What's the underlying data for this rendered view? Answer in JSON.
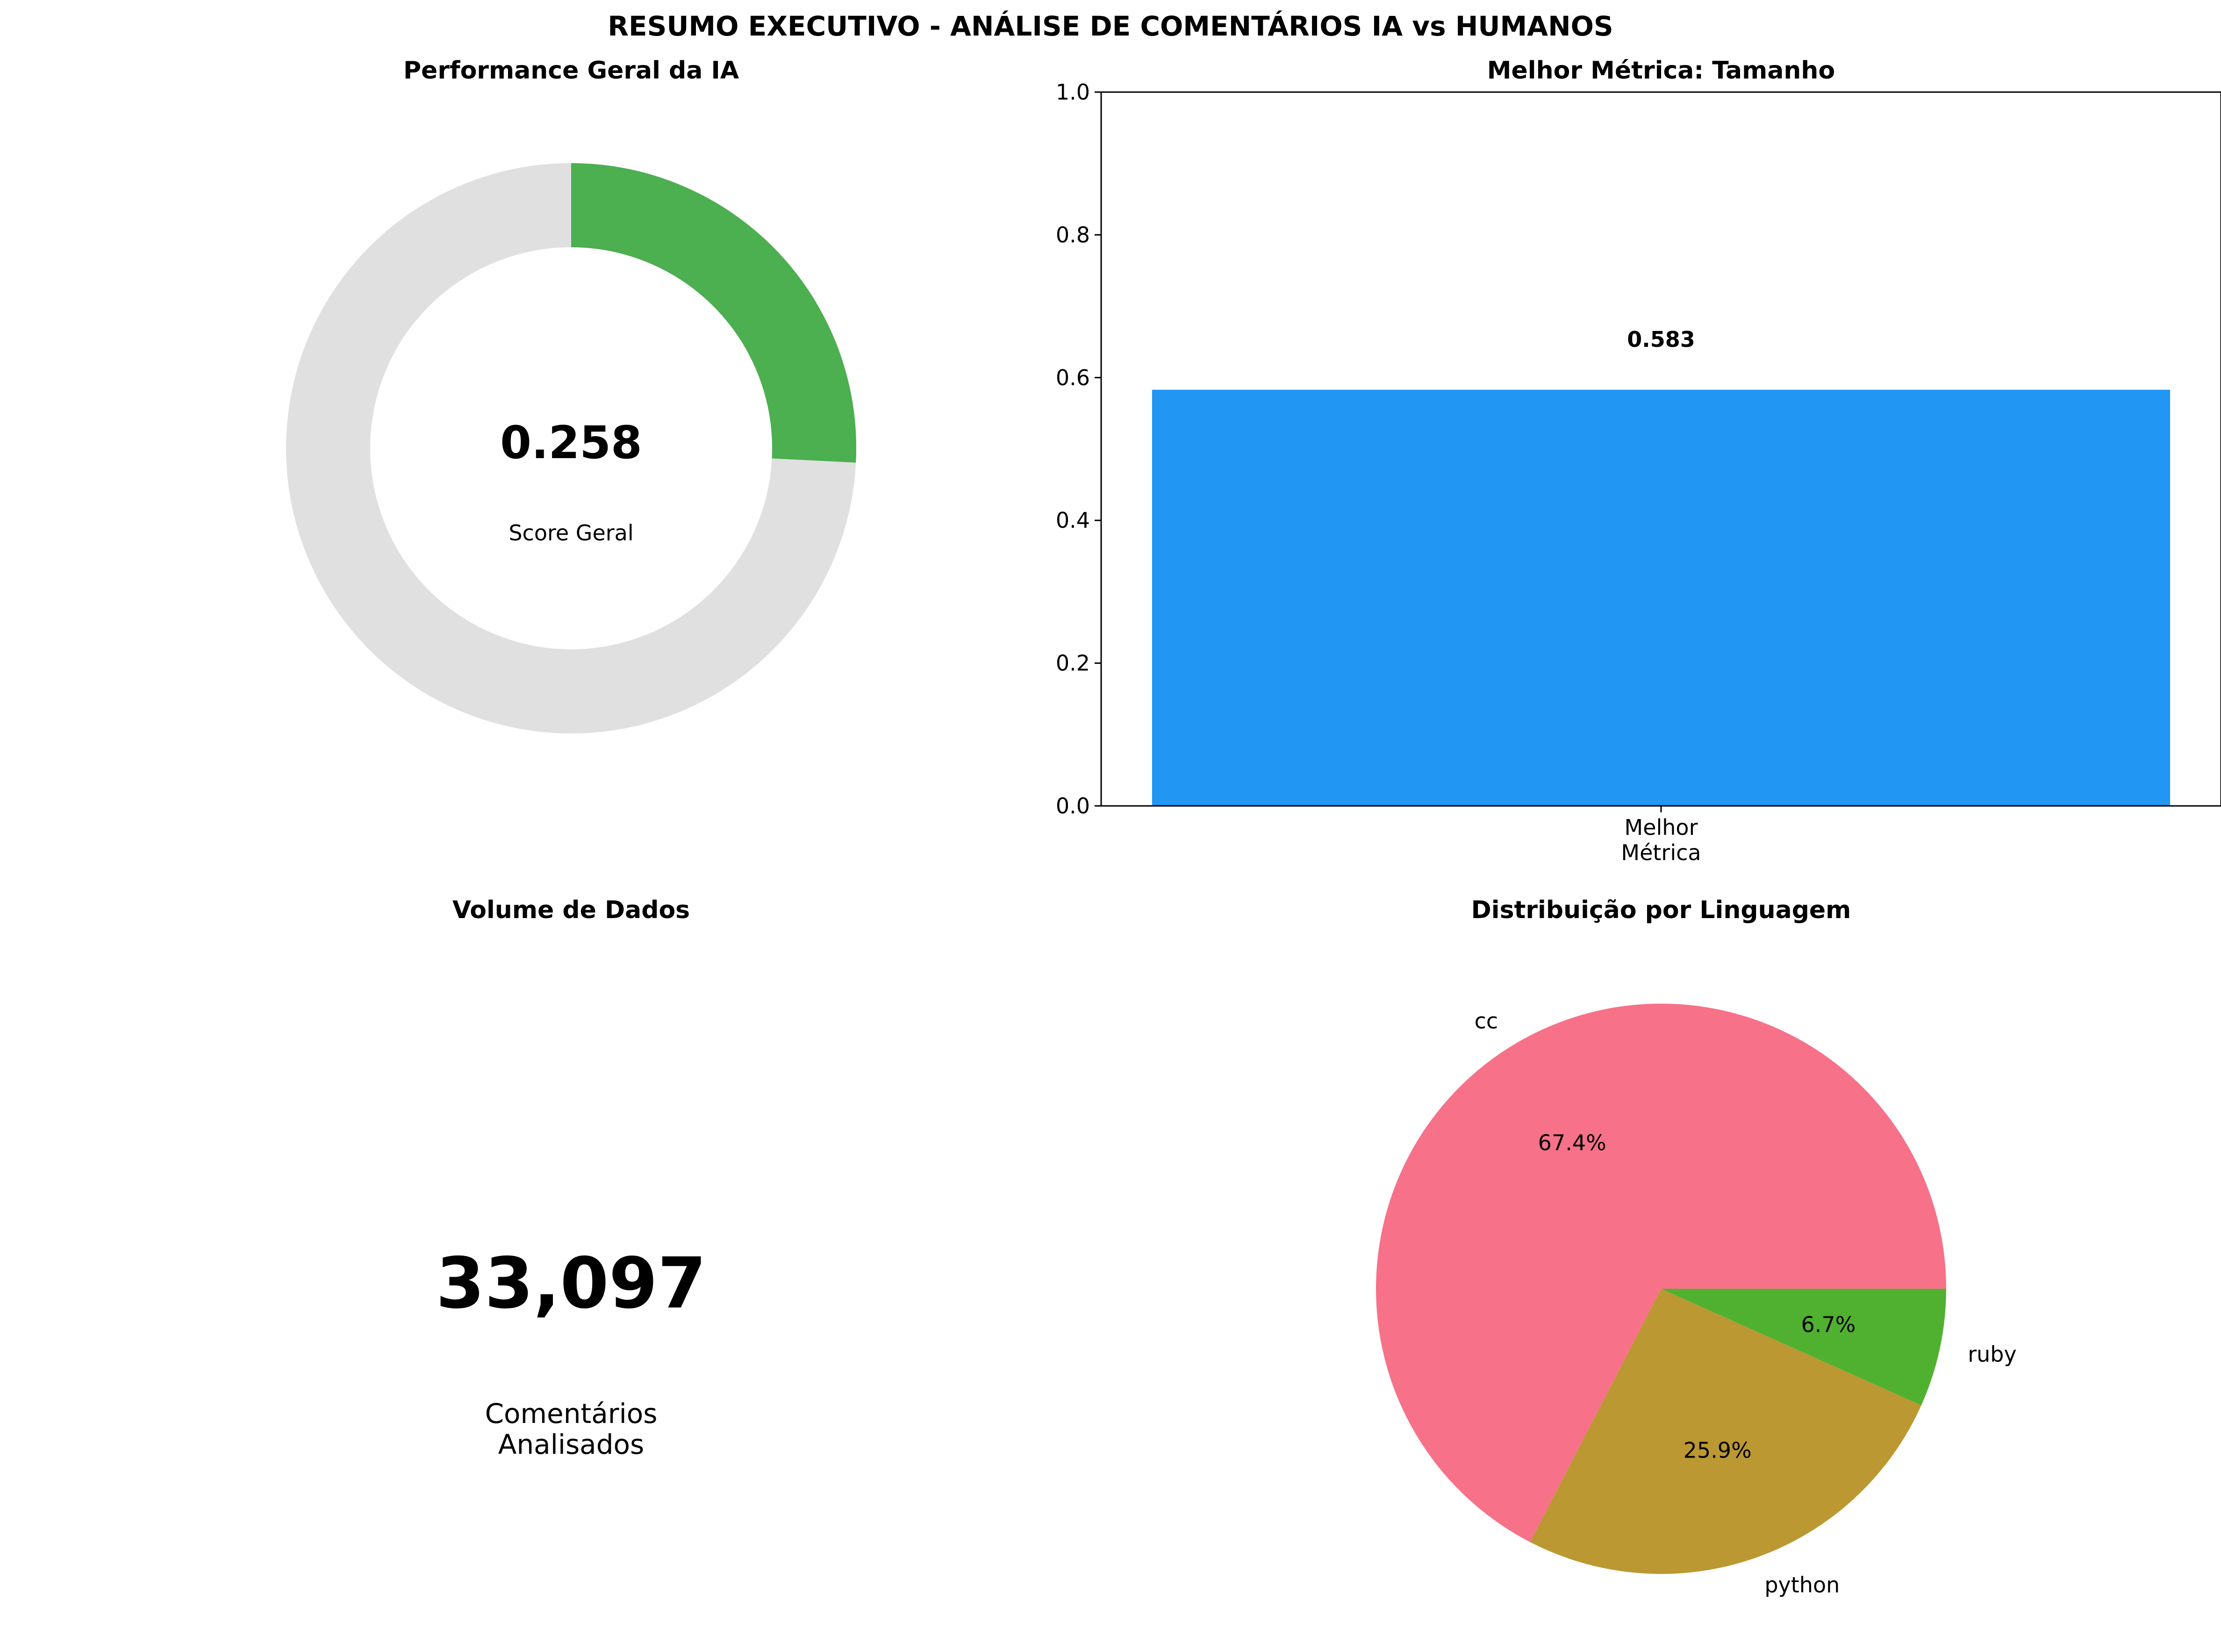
{
  "title": "RESUMO EXECUTIVO - ANÁLISE DE COMENTÁRIOS IA vs HUMANOS",
  "colors": {
    "gauge_fill": "#4caf50",
    "gauge_track": "#e0e0e0",
    "bar": "#2196f3",
    "pie": [
      "#f77189",
      "#bb9832",
      "#50b131"
    ]
  },
  "chart_data": [
    {
      "type": "pie",
      "variant": "donut-gauge",
      "title": "Performance Geral da IA",
      "value": 0.258,
      "value_label": "0.258",
      "caption": "Score Geral",
      "max": 1.0
    },
    {
      "type": "bar",
      "title": "Melhor Métrica: Tamanho",
      "categories": [
        "Melhor\nMétrica"
      ],
      "values": [
        0.583
      ],
      "data_labels": [
        "0.583"
      ],
      "ylim": [
        0,
        1.0
      ],
      "yticks": [
        "0.0",
        "0.2",
        "0.4",
        "0.6",
        "0.8",
        "1.0"
      ],
      "xlabel": "",
      "ylabel": "",
      "grid": false
    },
    {
      "type": "table",
      "variant": "big-number",
      "title": "Volume de Dados",
      "value": 33097,
      "value_label": "33,097",
      "caption": "Comentários\nAnalisados"
    },
    {
      "type": "pie",
      "title": "Distribuição por Linguagem",
      "labels": [
        "cc",
        "python",
        "ruby"
      ],
      "values": [
        67.4,
        25.9,
        6.7
      ],
      "pct_labels": [
        "67.4%",
        "25.9%",
        "6.7%"
      ]
    }
  ]
}
